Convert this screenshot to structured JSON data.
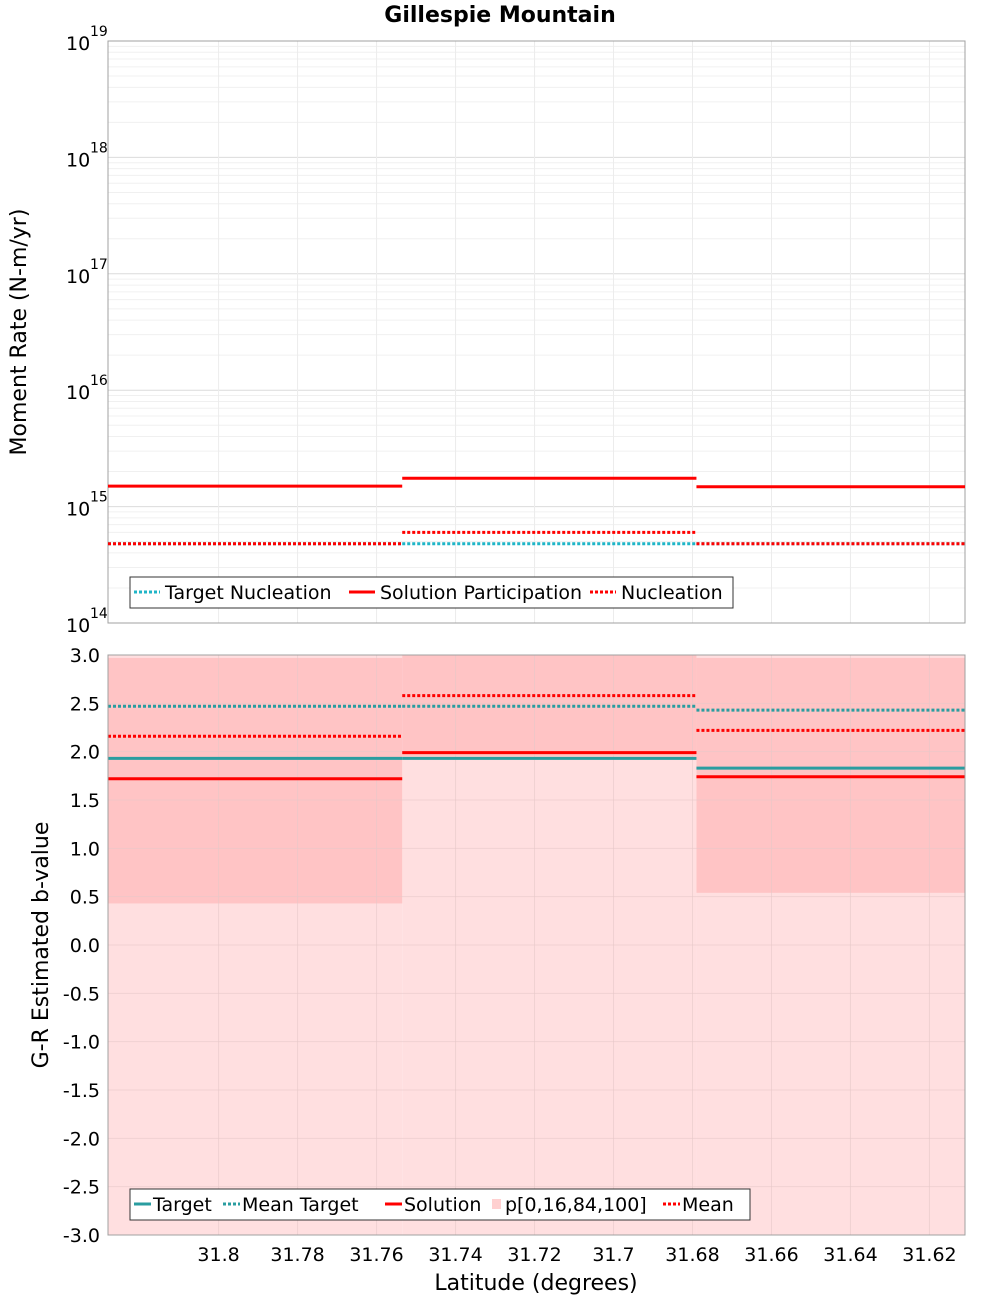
{
  "chart_data": [
    {
      "type": "line",
      "panel": "top",
      "title": "Gillespie Mountain",
      "ylabel": "Moment Rate (N-m/yr)",
      "yscale": "log",
      "ylim": [
        100000000000000.0,
        1e+19
      ],
      "ytick_exponents": [
        "14",
        "15",
        "16",
        "17",
        "18",
        "19"
      ],
      "ytick_base": "10",
      "xlim": [
        31.828,
        31.611
      ],
      "segments": [
        [
          31.828,
          31.7535
        ],
        [
          31.7535,
          31.679
        ],
        [
          31.679,
          31.611
        ]
      ],
      "series": [
        {
          "name": "Target Nucleation",
          "color": "#1fb5c7",
          "style": "dotted",
          "values": [
            480000000000000.0,
            480000000000000.0,
            480000000000000.0
          ]
        },
        {
          "name": "Solution Participation",
          "color": "#ff0000",
          "style": "solid",
          "values": [
            1500000000000000.0,
            1750000000000000.0,
            1480000000000000.0
          ]
        },
        {
          "name": "Nucleation",
          "color": "#ff0000",
          "style": "dotted",
          "values": [
            480000000000000.0,
            600000000000000.0,
            480000000000000.0
          ]
        }
      ],
      "legend": [
        "Target Nucleation",
        "Solution Participation",
        "Nucleation"
      ]
    },
    {
      "type": "line",
      "panel": "bottom",
      "xlabel": "Latitude (degrees)",
      "ylabel": "G-R Estimated b-value",
      "ylim": [
        -3.0,
        3.0
      ],
      "xlim": [
        31.828,
        31.611
      ],
      "yticks": [
        "3.0",
        "2.5",
        "2.0",
        "1.5",
        "1.0",
        "0.5",
        "0.0",
        "-0.5",
        "-1.0",
        "-1.5",
        "-2.0",
        "-2.5",
        "-3.0"
      ],
      "xticks": [
        "31.8",
        "31.78",
        "31.76",
        "31.74",
        "31.72",
        "31.7",
        "31.68",
        "31.66",
        "31.64",
        "31.62"
      ],
      "xtick_values": [
        31.8,
        31.78,
        31.76,
        31.74,
        31.72,
        31.7,
        31.68,
        31.66,
        31.64,
        31.62
      ],
      "segments": [
        [
          31.828,
          31.7535
        ],
        [
          31.7535,
          31.679
        ],
        [
          31.679,
          31.611
        ]
      ],
      "bands": {
        "outer": {
          "name": "p[0,16,84,100]",
          "color": "#ffdfe0",
          "low": [
            -3.0,
            -3.0,
            -3.0
          ],
          "high": [
            3.0,
            3.0,
            3.0
          ]
        },
        "inner": {
          "color": "#ffc4c5",
          "low": [
            0.43,
            1.95,
            0.54
          ],
          "high": [
            2.97,
            3.0,
            2.97
          ]
        }
      },
      "series": [
        {
          "name": "Target",
          "color": "#2a9da0",
          "style": "solid",
          "values": [
            1.93,
            1.93,
            1.83
          ]
        },
        {
          "name": "Mean Target",
          "color": "#2a9da0",
          "style": "dotted",
          "values": [
            2.47,
            2.47,
            2.43
          ]
        },
        {
          "name": "Solution",
          "color": "#ff0000",
          "style": "solid",
          "values": [
            1.72,
            1.99,
            1.74
          ]
        },
        {
          "name": "Mean",
          "color": "#ff0000",
          "style": "dotted",
          "values": [
            2.16,
            2.58,
            2.22
          ]
        }
      ],
      "legend": [
        "Target",
        "Mean Target",
        "Solution",
        "p[0,16,84,100]",
        "Mean"
      ]
    }
  ]
}
